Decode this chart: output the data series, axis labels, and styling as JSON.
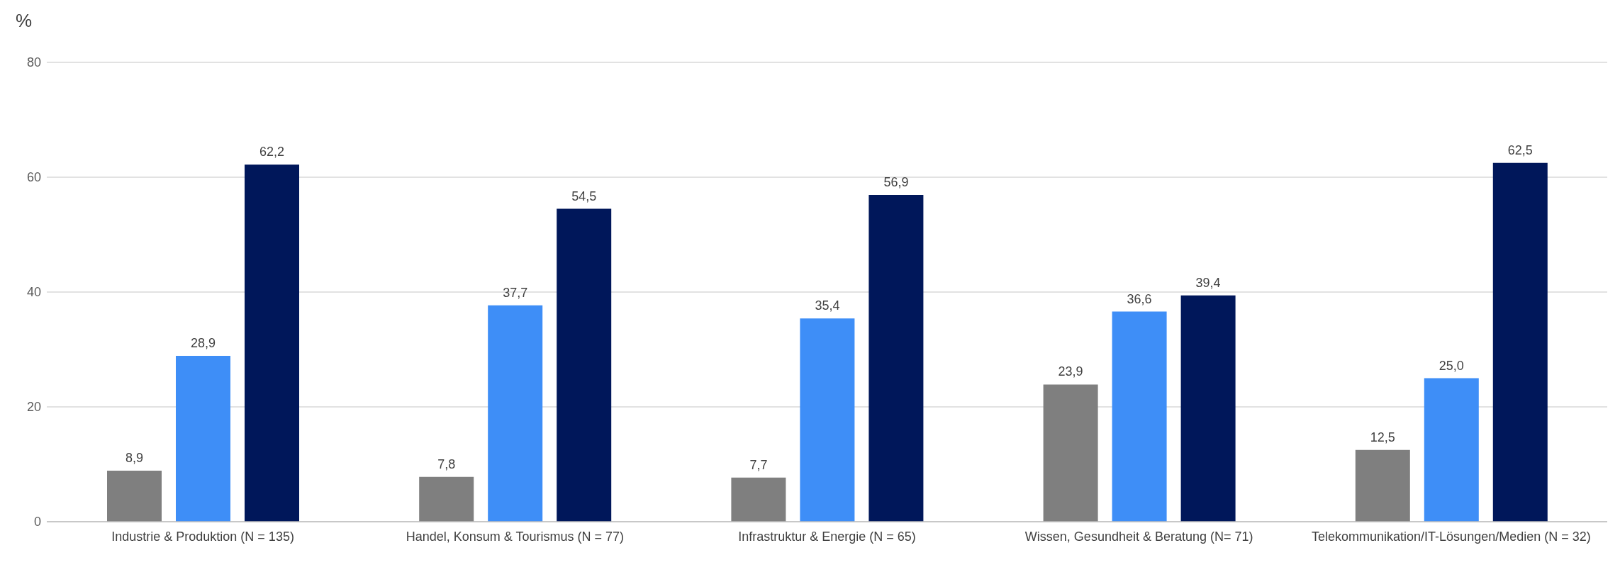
{
  "chart_data": {
    "type": "bar",
    "ylabel": "%",
    "categories": [
      "Industrie & Produktion (N = 135)",
      "Handel, Konsum & Tourismus (N = 77)",
      "Infrastruktur & Energie (N = 65)",
      "Wissen, Gesundheit & Beratung (N= 71)",
      "Telekommunikation/IT-Lösungen/Medien (N = 32)"
    ],
    "series": [
      {
        "color": "#7f7f7f",
        "values": [
          8.9,
          7.8,
          7.7,
          23.9,
          12.5
        ],
        "value_labels": [
          "8,9",
          "7,8",
          "7,7",
          "23,9",
          "12,5"
        ]
      },
      {
        "color": "#3e8ef7",
        "values": [
          28.9,
          37.7,
          35.4,
          36.6,
          25.0
        ],
        "value_labels": [
          "28,9",
          "37,7",
          "35,4",
          "36,6",
          "25,0"
        ]
      },
      {
        "color": "#00175a",
        "values": [
          62.2,
          54.5,
          56.9,
          39.4,
          62.5
        ],
        "value_labels": [
          "62,2",
          "54,5",
          "56,9",
          "39,4",
          "62,5"
        ]
      }
    ],
    "ylim": [
      0,
      80
    ],
    "yticks": [
      0,
      20,
      40,
      60,
      80
    ],
    "grid": "y"
  }
}
